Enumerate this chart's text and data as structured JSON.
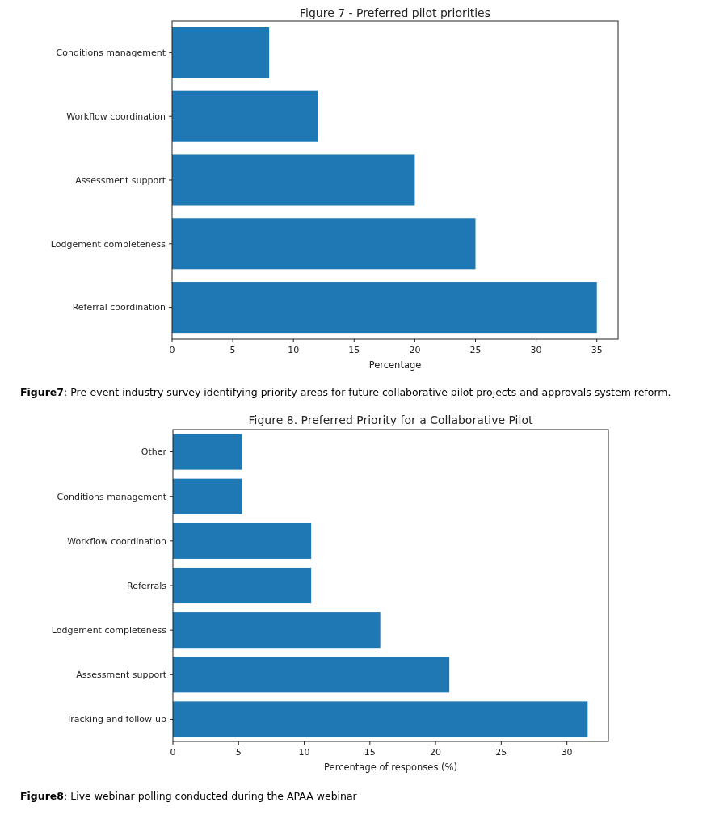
{
  "chart_data": [
    {
      "type": "bar",
      "orientation": "horizontal",
      "title": "Figure 7 - Preferred pilot priorities",
      "xlabel": "Percentage",
      "categories": [
        "Conditions management",
        "Workflow coordination",
        "Assessment support",
        "Lodgement completeness",
        "Referral coordination"
      ],
      "values": [
        8,
        12,
        20,
        25,
        35
      ],
      "color": "#1f77b4",
      "xlim": [
        0,
        36.75
      ],
      "xticks": [
        0,
        5,
        10,
        15,
        20,
        25,
        30,
        35
      ],
      "grid": false,
      "annotations": [
        "Figure7: Pre-event industry survey identifying priority areas for future collaborative pilot projects and approvals system reform."
      ]
    },
    {
      "type": "bar",
      "orientation": "horizontal",
      "title": "Figure 8. Preferred Priority for a Collaborative Pilot",
      "xlabel": "Percentage of responses (%)",
      "categories": [
        "Other",
        "Conditions management",
        "Workflow coordination",
        "Referrals",
        "Lodgement completeness",
        "Assessment support",
        "Tracking and follow-up"
      ],
      "values": [
        5.26,
        5.26,
        10.53,
        10.53,
        15.79,
        21.05,
        31.58
      ],
      "color": "#1f77b4",
      "xlim": [
        0,
        33.16
      ],
      "xticks": [
        0,
        5,
        10,
        15,
        20,
        25,
        30
      ],
      "grid": false,
      "annotations": [
        "Figure8: Live webinar polling conducted during the APAA webinar"
      ]
    }
  ]
}
